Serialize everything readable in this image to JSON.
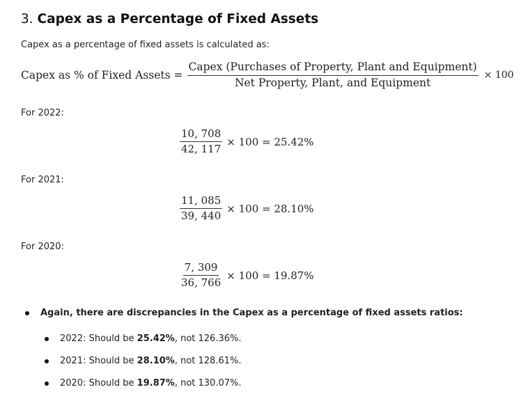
{
  "heading": {
    "number": "3.",
    "title": "Capex as a Percentage of Fixed Assets"
  },
  "intro": "Capex as a percentage of fixed assets is calculated as:",
  "formula": {
    "lhs": "Capex as % of Fixed Assets =",
    "numerator": "Capex (Purchases of Property, Plant and Equipment)",
    "denominator": "Net Property, Plant, and Equipment",
    "tail": "× 100"
  },
  "years": [
    {
      "label": "For 2022:",
      "numerator": "10, 708",
      "denominator": "42, 117",
      "result": "× 100 = 25.42%"
    },
    {
      "label": "For 2021:",
      "numerator": "11, 085",
      "denominator": "39, 440",
      "result": "× 100 = 28.10%"
    },
    {
      "label": "For 2020:",
      "numerator": "7, 309",
      "denominator": "36, 766",
      "result": "× 100 = 19.87%"
    }
  ],
  "summary": {
    "text": "Again, there are discrepancies in the Capex as a percentage of fixed assets ratios:",
    "items": [
      {
        "prefix": "2022: Should be ",
        "correct": "25.42%",
        "suffix": ", not 126.36%."
      },
      {
        "prefix": "2021: Should be ",
        "correct": "28.10%",
        "suffix": ", not 128.61%."
      },
      {
        "prefix": "2020: Should be ",
        "correct": "19.87%",
        "suffix": ", not 130.07%."
      }
    ]
  }
}
